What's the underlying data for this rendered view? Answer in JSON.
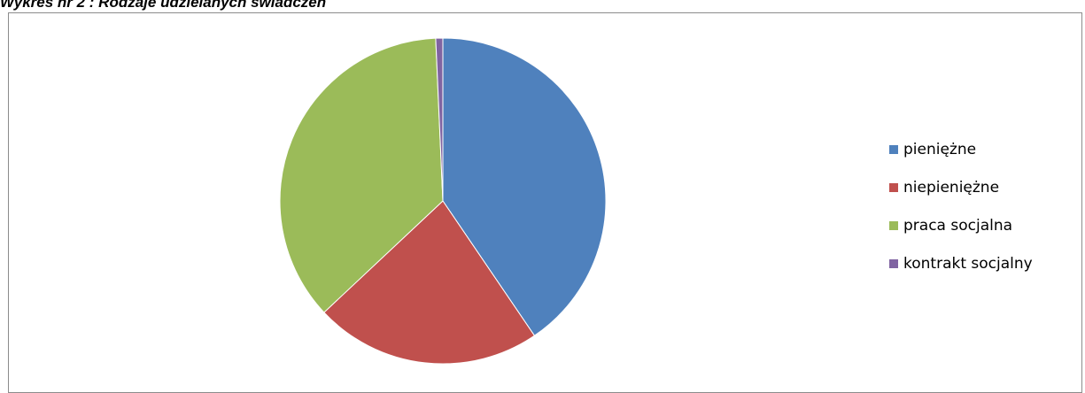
{
  "caption": "Wykres nr 2 : Rodzaje udzielanych świadczeń",
  "chart_data": {
    "type": "pie",
    "title": "",
    "categories": [
      "pieniężne",
      "niepieniężne",
      "praca socjalna",
      "kontrakt socjalny"
    ],
    "values": [
      40.5,
      22.5,
      36.3,
      0.7
    ],
    "colors": [
      "#4f81bd",
      "#c0504d",
      "#9bbb59",
      "#8064a2"
    ],
    "start_angle_deg": 0,
    "direction": "clockwise",
    "legend_position": "right"
  }
}
